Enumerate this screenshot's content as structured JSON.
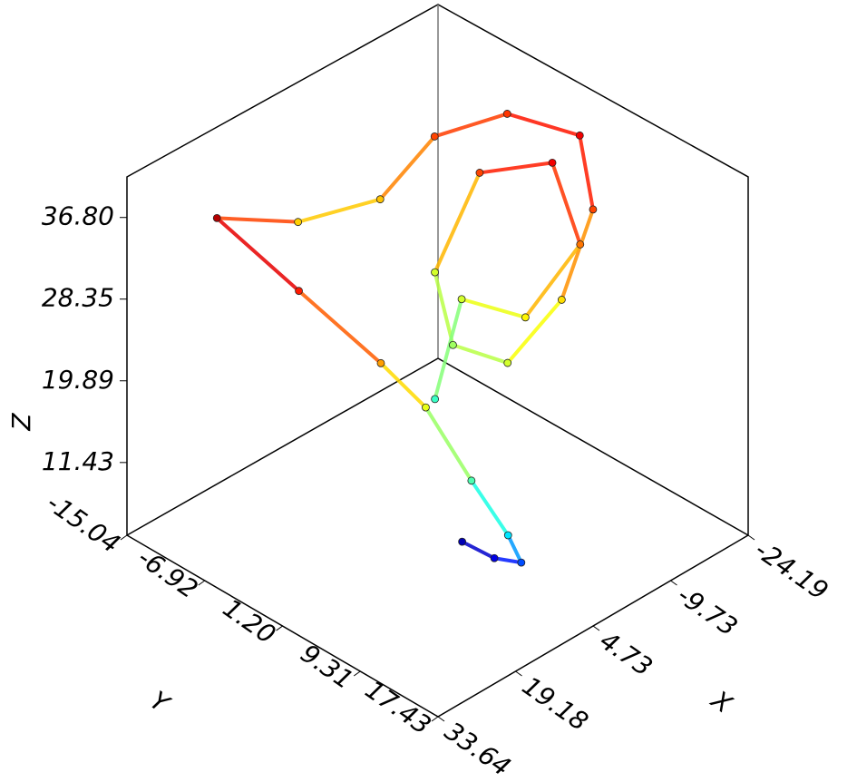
{
  "chart_data": {
    "type": "scatter3d",
    "xlabel": "X",
    "ylabel": "Y",
    "zlabel": "Z",
    "xlim": [
      -24.19,
      33.64
    ],
    "ylim": [
      -15.04,
      17.43
    ],
    "zlim": [
      3.9,
      41.0
    ],
    "xticks": [
      -24.19,
      -9.73,
      4.73,
      19.18,
      33.64
    ],
    "yticks": [
      -15.04,
      -6.92,
      {
        "value": 1.2,
        "label": "1.20"
      },
      9.31,
      17.43
    ],
    "zticks": [
      11.43,
      19.89,
      28.35,
      {
        "value": 36.8,
        "label": "36.80"
      }
    ],
    "colormap": "jet",
    "x": [
      6.4,
      8.8,
      12.7,
      18.2,
      18.6,
      19.8,
      23.7,
      27.2,
      28.9,
      6.1,
      -4.4,
      -12.4,
      -22.0,
      -21.6,
      -15.5,
      -6.8,
      4.0,
      3.3,
      -3.7,
      -10.8,
      -14.7,
      -11.5,
      -2.0,
      -1.9,
      7.9
    ],
    "y": [
      4.7,
      9.4,
      14.4,
      16.1,
      12.5,
      8.4,
      5.9,
      -0.7,
      -8.3,
      -12.6,
      -9.9,
      -8.7,
      -6.5,
      1.3,
      6.1,
      7.7,
      8.1,
      2.0,
      -3.8,
      -3.1,
      2.3,
      7.0,
      6.6,
      0.0,
      2.7
    ],
    "z": [
      5.8,
      7.6,
      11.3,
      16.9,
      20.6,
      26.2,
      30.6,
      35.4,
      39.1,
      28.8,
      29.3,
      33.9,
      34.4,
      36.8,
      33.9,
      28.3,
      25.5,
      23.6,
      25.5,
      33.9,
      36.8,
      32.1,
      27.4,
      25.5,
      19.9
    ]
  }
}
